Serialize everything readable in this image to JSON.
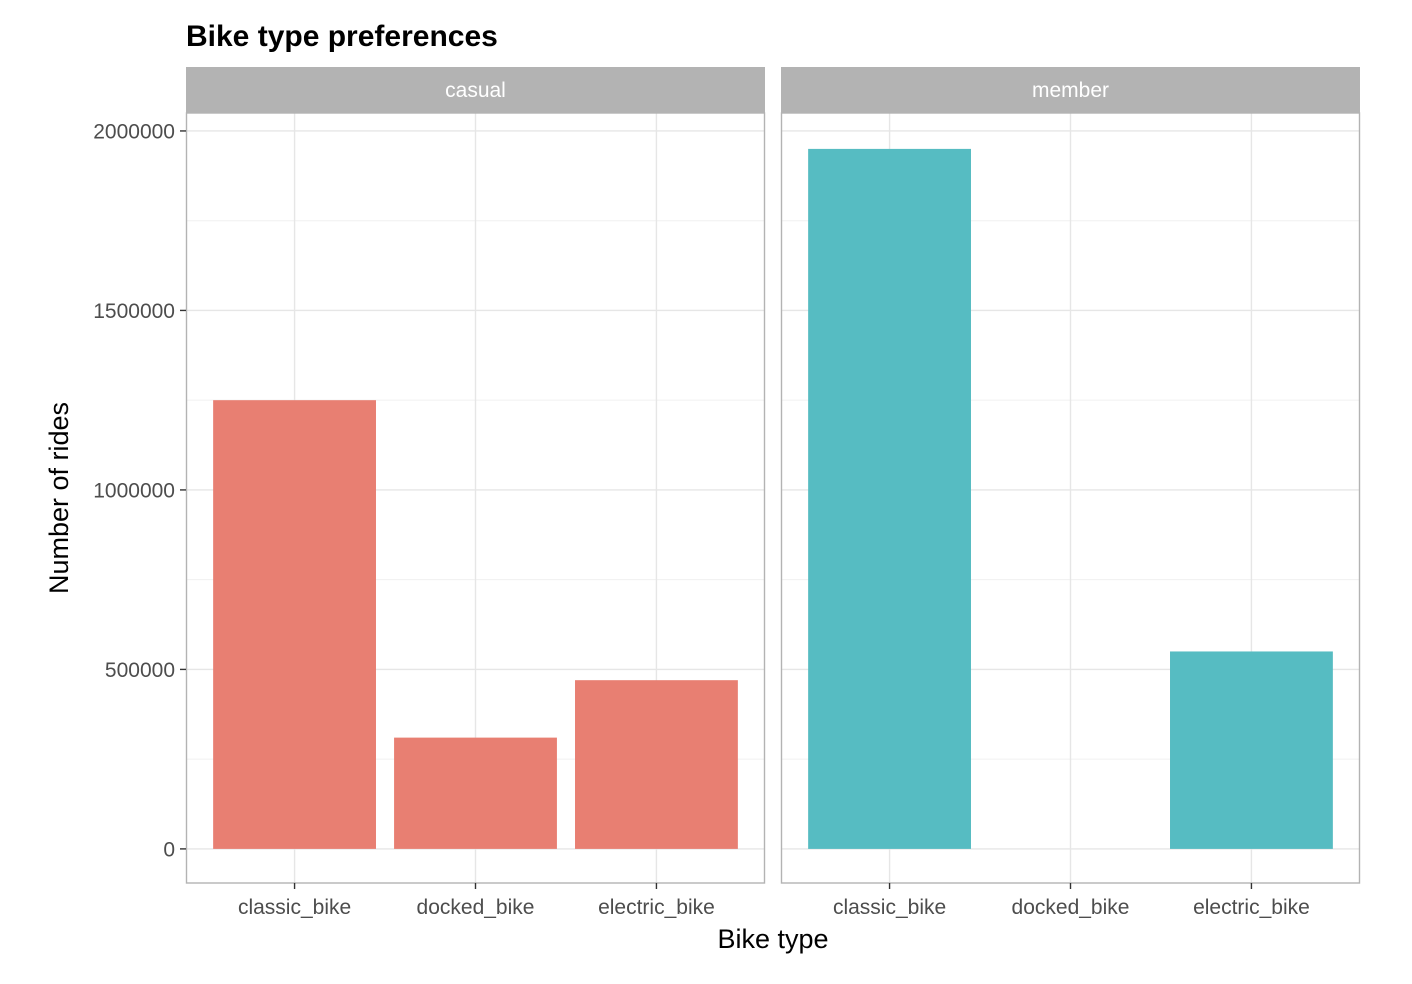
{
  "chart_data": {
    "type": "bar",
    "title": "Bike type preferences",
    "xlabel": "Bike type",
    "ylabel": "Number of rides",
    "categories": [
      "classic_bike",
      "docked_bike",
      "electric_bike"
    ],
    "ylim": [
      -95000,
      2050000
    ],
    "yticks": [
      0,
      500000,
      1000000,
      1500000,
      2000000
    ],
    "ytick_labels": [
      "0",
      "500000",
      "1000000",
      "1500000",
      "2000000"
    ],
    "grid": true,
    "legend": "none",
    "facet_by": "rider type",
    "facets": [
      {
        "label": "casual",
        "color": "#E87F72",
        "values": [
          1250000,
          310000,
          470000
        ]
      },
      {
        "label": "member",
        "color": "#56BCC2",
        "values": [
          1950000,
          0,
          550000
        ]
      }
    ]
  },
  "colors": {
    "strip_background": "#B3B3B3",
    "panel_border": "#B3B3B3",
    "grid_major": "#E6E6E6",
    "grid_minor": "#F0F0F0",
    "tick_text": "#4D4D4D"
  }
}
